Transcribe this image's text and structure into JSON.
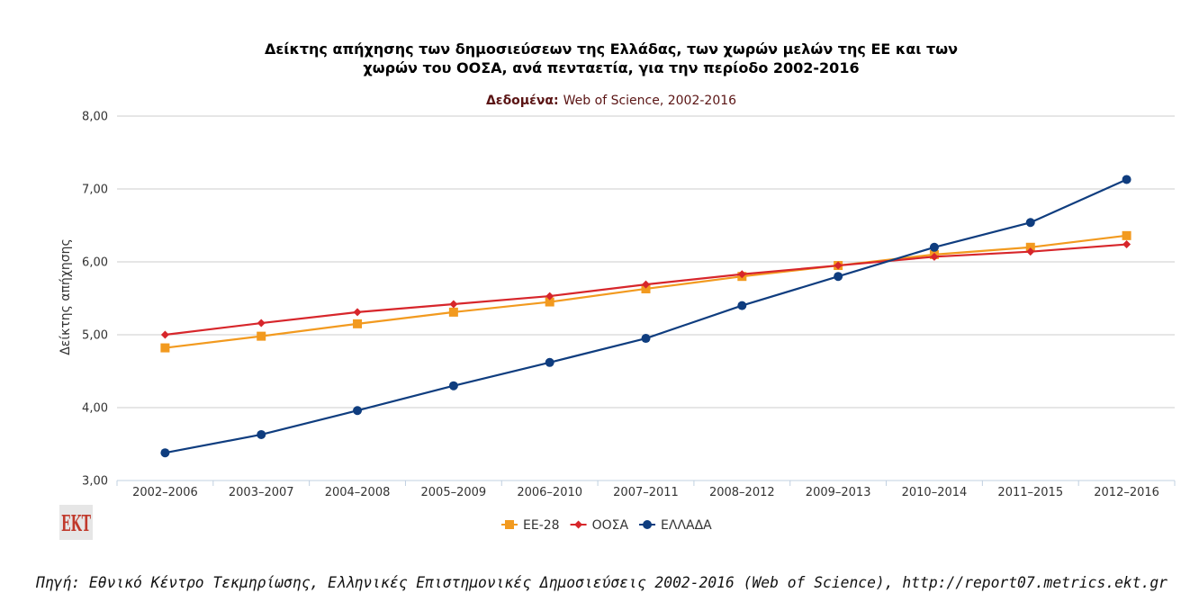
{
  "chart_data": {
    "type": "line",
    "title_line1": "Δείκτης απήχησης των δημοσιεύσεων της Ελλάδας, των χωρών μελών της ΕΕ και των",
    "title_line2": "χωρών του ΟΟΣΑ, ανά πενταετία, για την περίοδο 2002-2016",
    "subtitle_label": "Δεδομένα:",
    "subtitle_value": "Web of Science, 2002-2016",
    "ylabel": "Δείκτης απήχησης",
    "xlabel": "",
    "ylim": [
      3,
      8
    ],
    "yticks": [
      "3,00",
      "4,00",
      "5,00",
      "6,00",
      "7,00",
      "8,00"
    ],
    "categories": [
      "2002–2006",
      "2003–2007",
      "2004–2008",
      "2005–2009",
      "2006–2010",
      "2007–2011",
      "2008–2012",
      "2009–2013",
      "2010–2014",
      "2011–2015",
      "2012–2016"
    ],
    "grid": true,
    "legend_position": "bottom",
    "series": [
      {
        "name": "ΕΕ-28",
        "color": "#f29a1f",
        "marker": "square",
        "values": [
          4.82,
          4.98,
          5.15,
          5.31,
          5.45,
          5.63,
          5.8,
          5.95,
          6.1,
          6.2,
          6.36
        ]
      },
      {
        "name": "ΟΟΣΑ",
        "color": "#d7262b",
        "marker": "diamond",
        "values": [
          5.0,
          5.16,
          5.31,
          5.42,
          5.53,
          5.69,
          5.83,
          5.95,
          6.07,
          6.14,
          6.24
        ]
      },
      {
        "name": "ΕΛΛΑΔΑ",
        "color": "#0f3d7f",
        "marker": "circle",
        "values": [
          3.38,
          3.63,
          3.96,
          4.3,
          4.62,
          4.95,
          5.4,
          5.8,
          6.2,
          6.54,
          7.13
        ]
      }
    ]
  },
  "logo": {
    "text": "EKT"
  },
  "source": "Πηγή: Εθνικό Κέντρο Τεκμηρίωσης, Ελληνικές Επιστημονικές Δημοσιεύσεις 2002-2016 (Web of Science), http://report07.metrics.ekt.gr"
}
